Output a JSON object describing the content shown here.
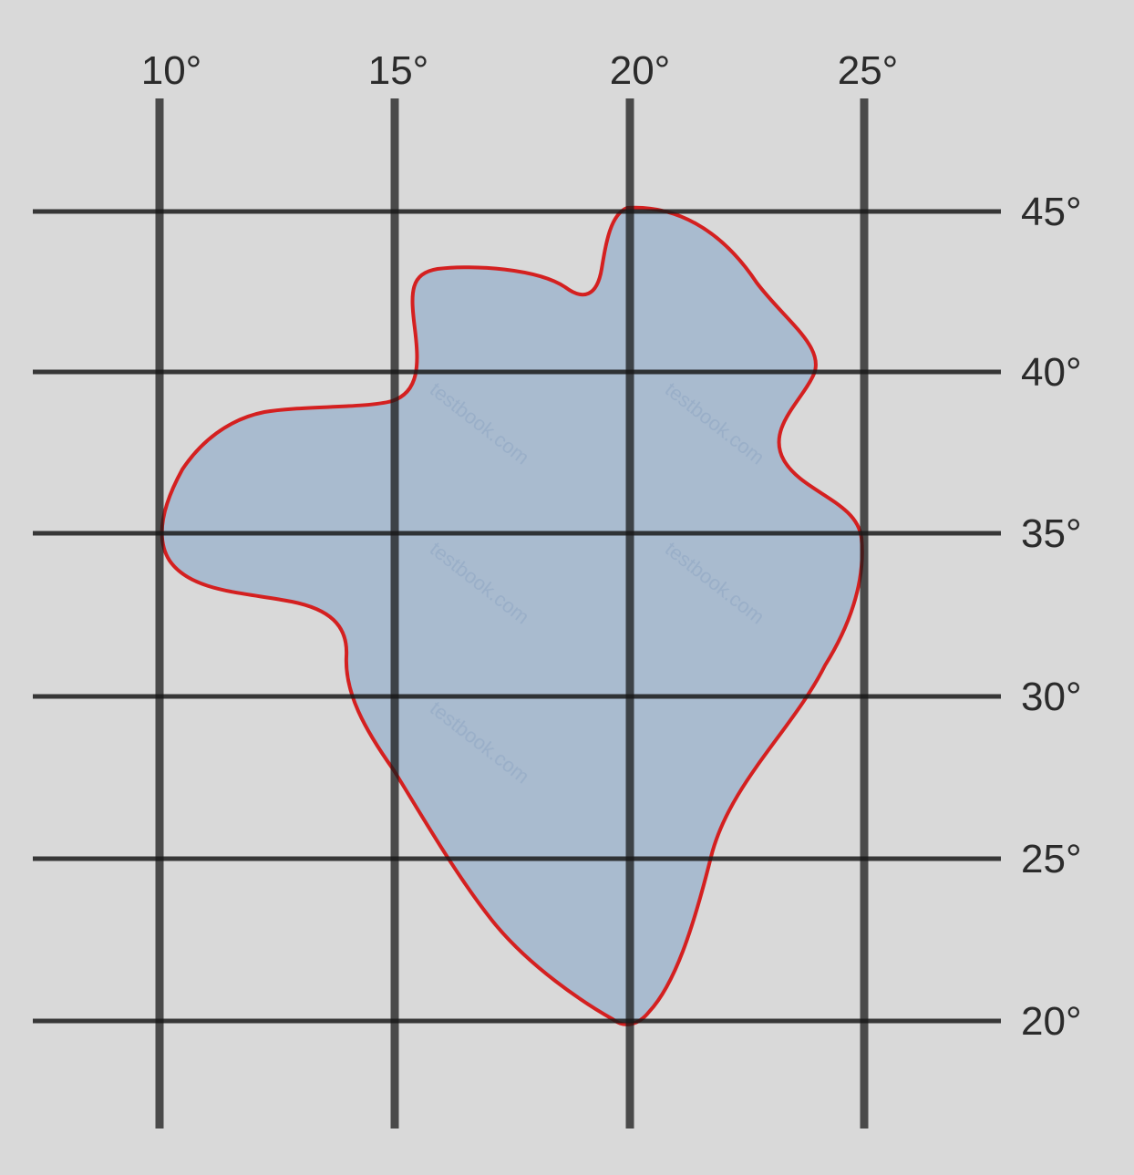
{
  "map": {
    "longitude_labels": [
      "10°",
      "15°",
      "20°",
      "25°"
    ],
    "latitude_labels": [
      "45°",
      "40°",
      "35°",
      "30°",
      "25°",
      "20°"
    ],
    "region": {
      "fill_color": "#a9bbcf",
      "outline_color": "#d42020"
    },
    "grid_color": "#1a1a1a",
    "background_color": "#d9d9d9",
    "watermark_text": "testbook.com"
  }
}
